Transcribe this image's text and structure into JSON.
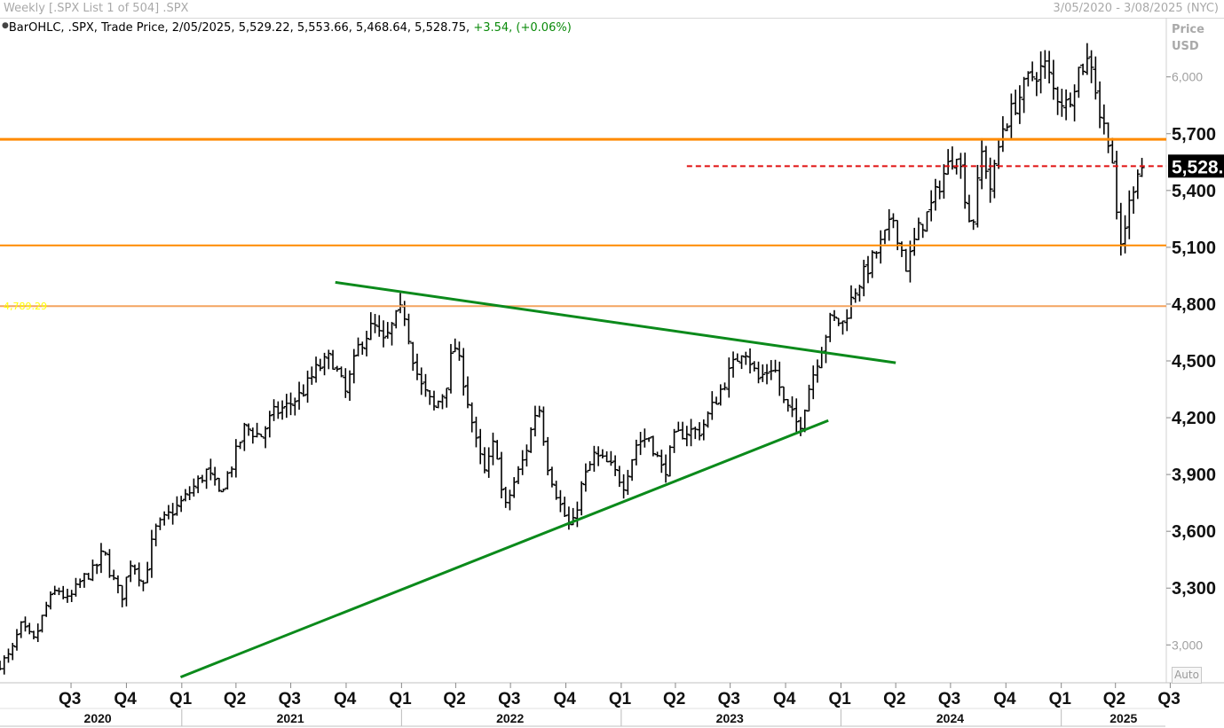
{
  "header": {
    "title": "Weekly [.SPX List 1 of 504] .SPX",
    "date_range": "3/05/2020 - 3/08/2025 (NYC)"
  },
  "legend": {
    "text": "BarOHLC, .SPX, Trade Price, 2/05/2025, 5,529.22, 5,553.66, 5,468.64, 5,528.75,",
    "change": "+3.54, (+0.06%)"
  },
  "y_axis_header": {
    "line1": "Price",
    "line2": "USD"
  },
  "auto_button": "Auto",
  "colors": {
    "bars": "#000000",
    "resistance": "#ff8a00",
    "support_label": "#ffff00",
    "trendline": "#0b8a1b",
    "current_price_line": "#e01010",
    "change_positive": "#0a8a0a"
  },
  "chart_data": {
    "type": "ohlc",
    "title": "",
    "ylabel": "Price USD",
    "ylim": [
      2800,
      6200
    ],
    "xlim": [
      "2020-03-05",
      "2025-06-23"
    ],
    "y_ticks": [
      {
        "value": 3000,
        "label": "3,000",
        "bold": false
      },
      {
        "value": 3300,
        "label": "3,300",
        "bold": true
      },
      {
        "value": 3600,
        "label": "3,600",
        "bold": true
      },
      {
        "value": 3900,
        "label": "3,900",
        "bold": true
      },
      {
        "value": 4200,
        "label": "4,200",
        "bold": true
      },
      {
        "value": 4500,
        "label": "4,500",
        "bold": true
      },
      {
        "value": 4800,
        "label": "4,800",
        "bold": true
      },
      {
        "value": 5100,
        "label": "5,100",
        "bold": true
      },
      {
        "value": 5400,
        "label": "5,400",
        "bold": true
      },
      {
        "value": 5700,
        "label": "5,700",
        "bold": true
      },
      {
        "value": 6000,
        "label": "6,000",
        "bold": false
      }
    ],
    "quarter_ticks": [
      {
        "date": "2020-07-01",
        "label": "Q3"
      },
      {
        "date": "2020-10-01",
        "label": "Q4"
      },
      {
        "date": "2021-01-01",
        "label": "Q1"
      },
      {
        "date": "2021-04-01",
        "label": "Q2"
      },
      {
        "date": "2021-07-01",
        "label": "Q3"
      },
      {
        "date": "2021-10-01",
        "label": "Q4"
      },
      {
        "date": "2022-01-01",
        "label": "Q1"
      },
      {
        "date": "2022-04-01",
        "label": "Q2"
      },
      {
        "date": "2022-07-01",
        "label": "Q3"
      },
      {
        "date": "2022-10-01",
        "label": "Q4"
      },
      {
        "date": "2023-01-01",
        "label": "Q1"
      },
      {
        "date": "2023-04-01",
        "label": "Q2"
      },
      {
        "date": "2023-07-01",
        "label": "Q3"
      },
      {
        "date": "2023-10-01",
        "label": "Q4"
      },
      {
        "date": "2024-01-01",
        "label": "Q1"
      },
      {
        "date": "2024-04-01",
        "label": "Q2"
      },
      {
        "date": "2024-07-01",
        "label": "Q3"
      },
      {
        "date": "2024-10-01",
        "label": "Q4"
      },
      {
        "date": "2025-01-01",
        "label": "Q1"
      },
      {
        "date": "2025-04-01",
        "label": "Q2"
      },
      {
        "date": "2025-07-01",
        "label": "Q3"
      }
    ],
    "year_labels": [
      {
        "date": "2020-08-15",
        "label": "2020"
      },
      {
        "date": "2021-07-01",
        "label": "2021"
      },
      {
        "date": "2022-07-01",
        "label": "2022"
      },
      {
        "date": "2023-07-01",
        "label": "2023"
      },
      {
        "date": "2024-07-01",
        "label": "2024"
      },
      {
        "date": "2025-04-15",
        "label": "2025"
      }
    ],
    "year_separators": [
      "2021-01-01",
      "2022-01-01",
      "2023-01-01",
      "2024-01-01",
      "2025-01-01"
    ],
    "horizontal_lines": [
      {
        "value": 5670,
        "style": "solid",
        "color": "#ff8a00",
        "width": 3
      },
      {
        "value": 5110,
        "style": "solid",
        "color": "#ff8a00",
        "width": 2
      },
      {
        "value": 4789.29,
        "style": "solid",
        "color": "#f4a460",
        "width": 2,
        "label": "4,789.29"
      }
    ],
    "current_price": {
      "value": 5528.75,
      "label": "5,528.",
      "from": "2023-04-20",
      "to": "2025-03-08"
    },
    "trendlines": [
      {
        "from": {
          "date": "2021-09-13",
          "value": 4915
        },
        "to": {
          "date": "2024-04-01",
          "value": 4490
        }
      },
      {
        "from": {
          "date": "2020-12-30",
          "value": 2830
        },
        "to": {
          "date": "2023-12-11",
          "value": 4185
        }
      }
    ],
    "series_path": [
      [
        "2020-03-05",
        2900
      ],
      [
        "2020-03-23",
        2950
      ],
      [
        "2020-04-08",
        3100
      ],
      [
        "2020-05-01",
        3020
      ],
      [
        "2020-05-20",
        3200
      ],
      [
        "2020-06-08",
        3300
      ],
      [
        "2020-06-26",
        3230
      ],
      [
        "2020-07-20",
        3350
      ],
      [
        "2020-08-10",
        3400
      ],
      [
        "2020-08-24",
        3500
      ],
      [
        "2020-09-04",
        3380
      ],
      [
        "2020-09-23",
        3250
      ],
      [
        "2020-10-09",
        3450
      ],
      [
        "2020-10-30",
        3320
      ],
      [
        "2020-11-16",
        3600
      ],
      [
        "2020-12-08",
        3680
      ],
      [
        "2020-12-28",
        3740
      ],
      [
        "2021-01-20",
        3830
      ],
      [
        "2021-02-12",
        3920
      ],
      [
        "2021-03-04",
        3800
      ],
      [
        "2021-03-25",
        3950
      ],
      [
        "2021-04-16",
        4150
      ],
      [
        "2021-05-12",
        4100
      ],
      [
        "2021-06-01",
        4220
      ],
      [
        "2021-06-25",
        4260
      ],
      [
        "2021-07-20",
        4330
      ],
      [
        "2021-08-12",
        4450
      ],
      [
        "2021-09-06",
        4520
      ],
      [
        "2021-09-30",
        4330
      ],
      [
        "2021-10-22",
        4580
      ],
      [
        "2021-11-15",
        4690
      ],
      [
        "2021-12-03",
        4590
      ],
      [
        "2021-12-22",
        4720
      ],
      [
        "2022-01-04",
        4780
      ],
      [
        "2022-01-18",
        4550
      ],
      [
        "2022-01-31",
        4380
      ],
      [
        "2022-02-24",
        4250
      ],
      [
        "2022-03-15",
        4350
      ],
      [
        "2022-03-29",
        4600
      ],
      [
        "2022-04-14",
        4400
      ],
      [
        "2022-05-06",
        4050
      ],
      [
        "2022-05-20",
        3900
      ],
      [
        "2022-06-06",
        4100
      ],
      [
        "2022-06-20",
        3700
      ],
      [
        "2022-07-06",
        3850
      ],
      [
        "2022-07-25",
        4000
      ],
      [
        "2022-08-16",
        4290
      ],
      [
        "2022-09-01",
        3950
      ],
      [
        "2022-09-20",
        3750
      ],
      [
        "2022-10-10",
        3600
      ],
      [
        "2022-10-28",
        3850
      ],
      [
        "2022-11-17",
        4000
      ],
      [
        "2022-12-12",
        3950
      ],
      [
        "2023-01-05",
        3850
      ],
      [
        "2023-01-27",
        4070
      ],
      [
        "2023-02-16",
        4100
      ],
      [
        "2023-03-13",
        3900
      ],
      [
        "2023-03-31",
        4100
      ],
      [
        "2023-04-21",
        4130
      ],
      [
        "2023-05-12",
        4130
      ],
      [
        "2023-06-05",
        4280
      ],
      [
        "2023-06-23",
        4400
      ],
      [
        "2023-07-24",
        4580
      ],
      [
        "2023-08-16",
        4400
      ],
      [
        "2023-09-11",
        4480
      ],
      [
        "2023-09-28",
        4280
      ],
      [
        "2023-10-24",
        4150
      ],
      [
        "2023-11-08",
        4350
      ],
      [
        "2023-11-27",
        4550
      ],
      [
        "2023-12-15",
        4720
      ],
      [
        "2024-01-04",
        4700
      ],
      [
        "2024-01-25",
        4880
      ],
      [
        "2024-02-16",
        5000
      ],
      [
        "2024-03-08",
        5120
      ],
      [
        "2024-03-28",
        5250
      ],
      [
        "2024-04-19",
        4990
      ],
      [
        "2024-05-07",
        5180
      ],
      [
        "2024-05-28",
        5300
      ],
      [
        "2024-06-17",
        5470
      ],
      [
        "2024-07-12",
        5620
      ],
      [
        "2024-08-05",
        5180
      ],
      [
        "2024-08-23",
        5620
      ],
      [
        "2024-09-06",
        5400
      ],
      [
        "2024-09-25",
        5730
      ],
      [
        "2024-10-18",
        5860
      ],
      [
        "2024-11-08",
        5990
      ],
      [
        "2024-12-06",
        6060
      ],
      [
        "2024-12-20",
        5920
      ],
      [
        "2025-01-10",
        5850
      ],
      [
        "2025-01-30",
        6040
      ],
      [
        "2025-02-19",
        6100
      ],
      [
        "2025-03-07",
        5780
      ],
      [
        "2025-03-25",
        5650
      ],
      [
        "2025-04-07",
        5060
      ],
      [
        "2025-04-21",
        5280
      ],
      [
        "2025-05-07",
        5520
      ],
      [
        "2025-05-21",
        5528.75
      ]
    ]
  }
}
